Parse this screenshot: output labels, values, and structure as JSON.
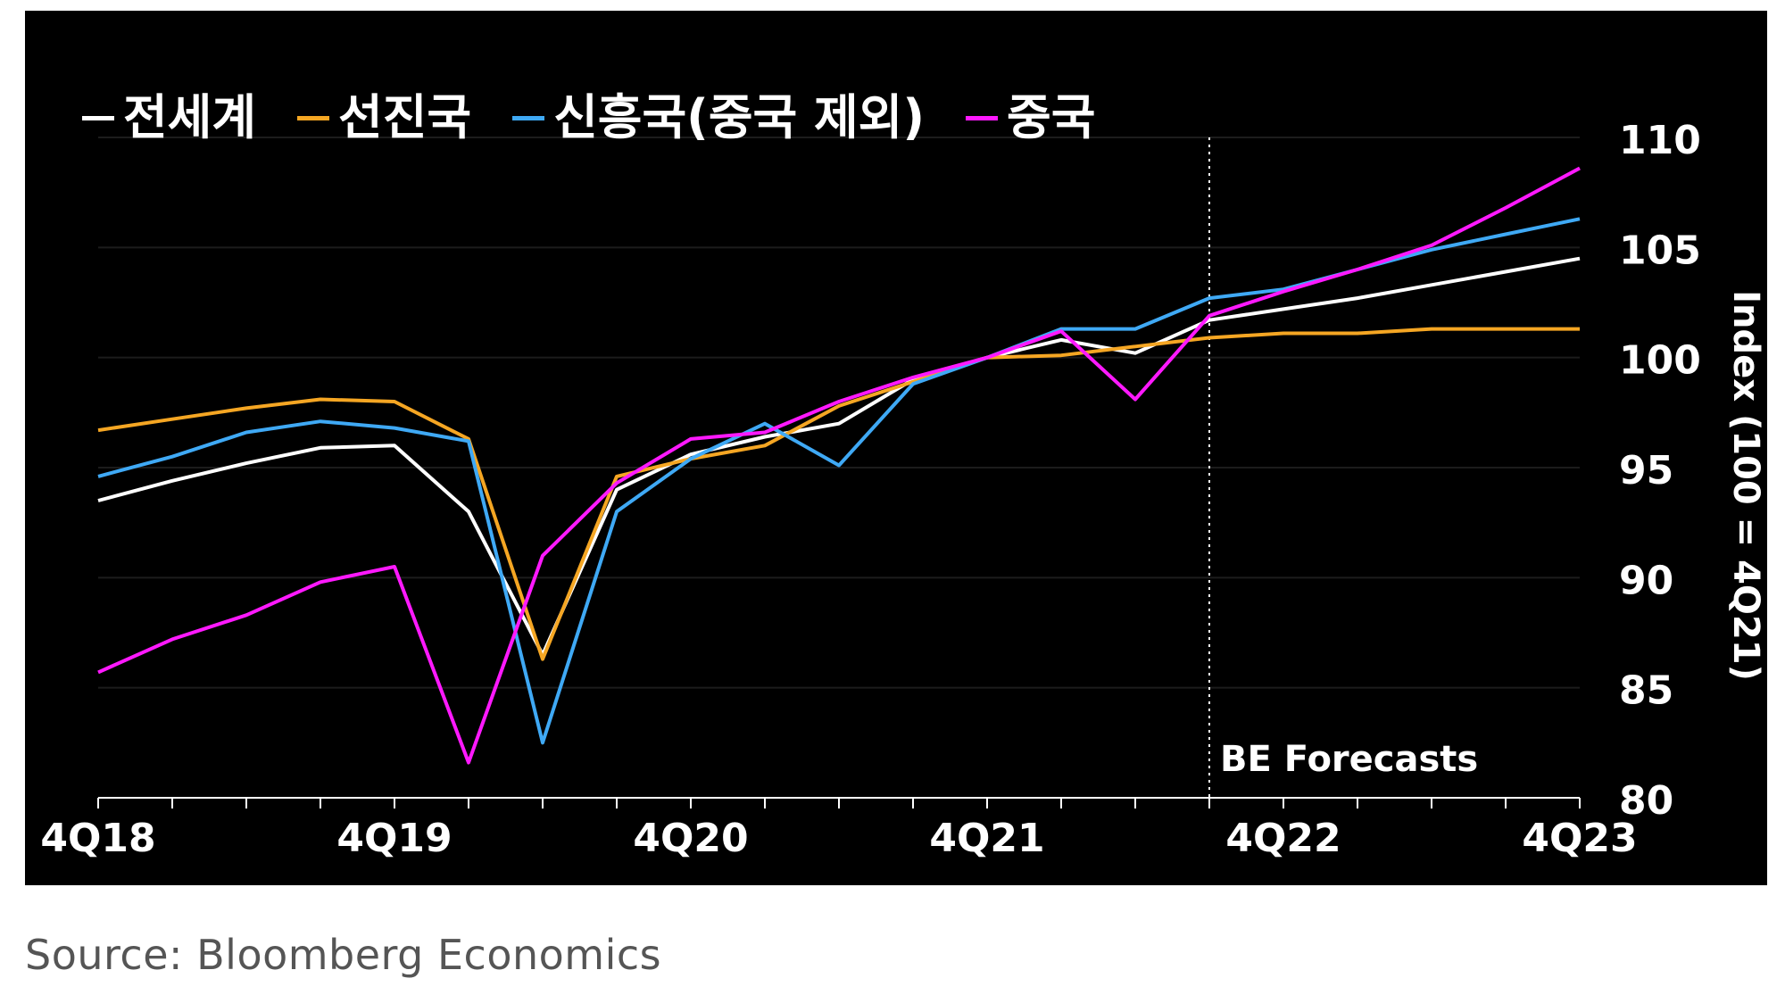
{
  "chart_data": {
    "type": "line",
    "x": [
      "4Q18",
      "1Q19",
      "2Q19",
      "3Q19",
      "4Q19",
      "1Q20",
      "2Q20",
      "3Q20",
      "4Q20",
      "1Q21",
      "2Q21",
      "3Q21",
      "4Q21",
      "1Q22",
      "2Q22",
      "3Q22",
      "4Q22",
      "1Q23",
      "2Q23",
      "3Q23",
      "4Q23"
    ],
    "x_tick_labels": [
      "4Q18",
      "4Q19",
      "4Q20",
      "4Q21",
      "4Q22",
      "4Q23"
    ],
    "ylabel": "Index (100 = 4Q21)",
    "ylim": [
      80,
      110
    ],
    "y_ticks": [
      80,
      85,
      90,
      95,
      100,
      105,
      110
    ],
    "grid": true,
    "legend_position": "top-left",
    "annotation": "BE Forecasts",
    "forecast_start": "3Q22",
    "series": [
      {
        "name": "전세계",
        "color": "#ffffff",
        "values": [
          93.5,
          94.4,
          95.2,
          95.9,
          96.0,
          93.0,
          86.5,
          94.0,
          95.6,
          96.4,
          97.0,
          99.0,
          100.0,
          100.8,
          100.2,
          101.7,
          102.2,
          102.7,
          103.3,
          103.9,
          104.5
        ]
      },
      {
        "name": "선진국",
        "color": "#f5a623",
        "values": [
          96.7,
          97.2,
          97.7,
          98.1,
          98.0,
          96.3,
          86.3,
          94.6,
          95.4,
          96.0,
          97.8,
          98.9,
          100.0,
          100.1,
          100.5,
          100.9,
          101.1,
          101.1,
          101.3,
          101.3,
          101.3
        ]
      },
      {
        "name": "신흥국(중국 제외)",
        "color": "#3fa9f5",
        "values": [
          94.6,
          95.5,
          96.6,
          97.1,
          96.8,
          96.2,
          82.5,
          93.0,
          95.4,
          97.0,
          95.1,
          98.8,
          100.0,
          101.3,
          101.3,
          102.7,
          103.1,
          104.0,
          104.9,
          105.6,
          106.3
        ]
      },
      {
        "name": "중국",
        "color": "#ff19ff",
        "values": [
          85.7,
          87.2,
          88.3,
          89.8,
          90.5,
          81.6,
          91.0,
          94.3,
          96.3,
          96.6,
          98.0,
          99.1,
          100.0,
          101.2,
          98.1,
          101.9,
          103.0,
          104.0,
          105.1,
          106.8,
          108.6
        ]
      }
    ]
  },
  "source": "Source: Bloomberg Economics"
}
